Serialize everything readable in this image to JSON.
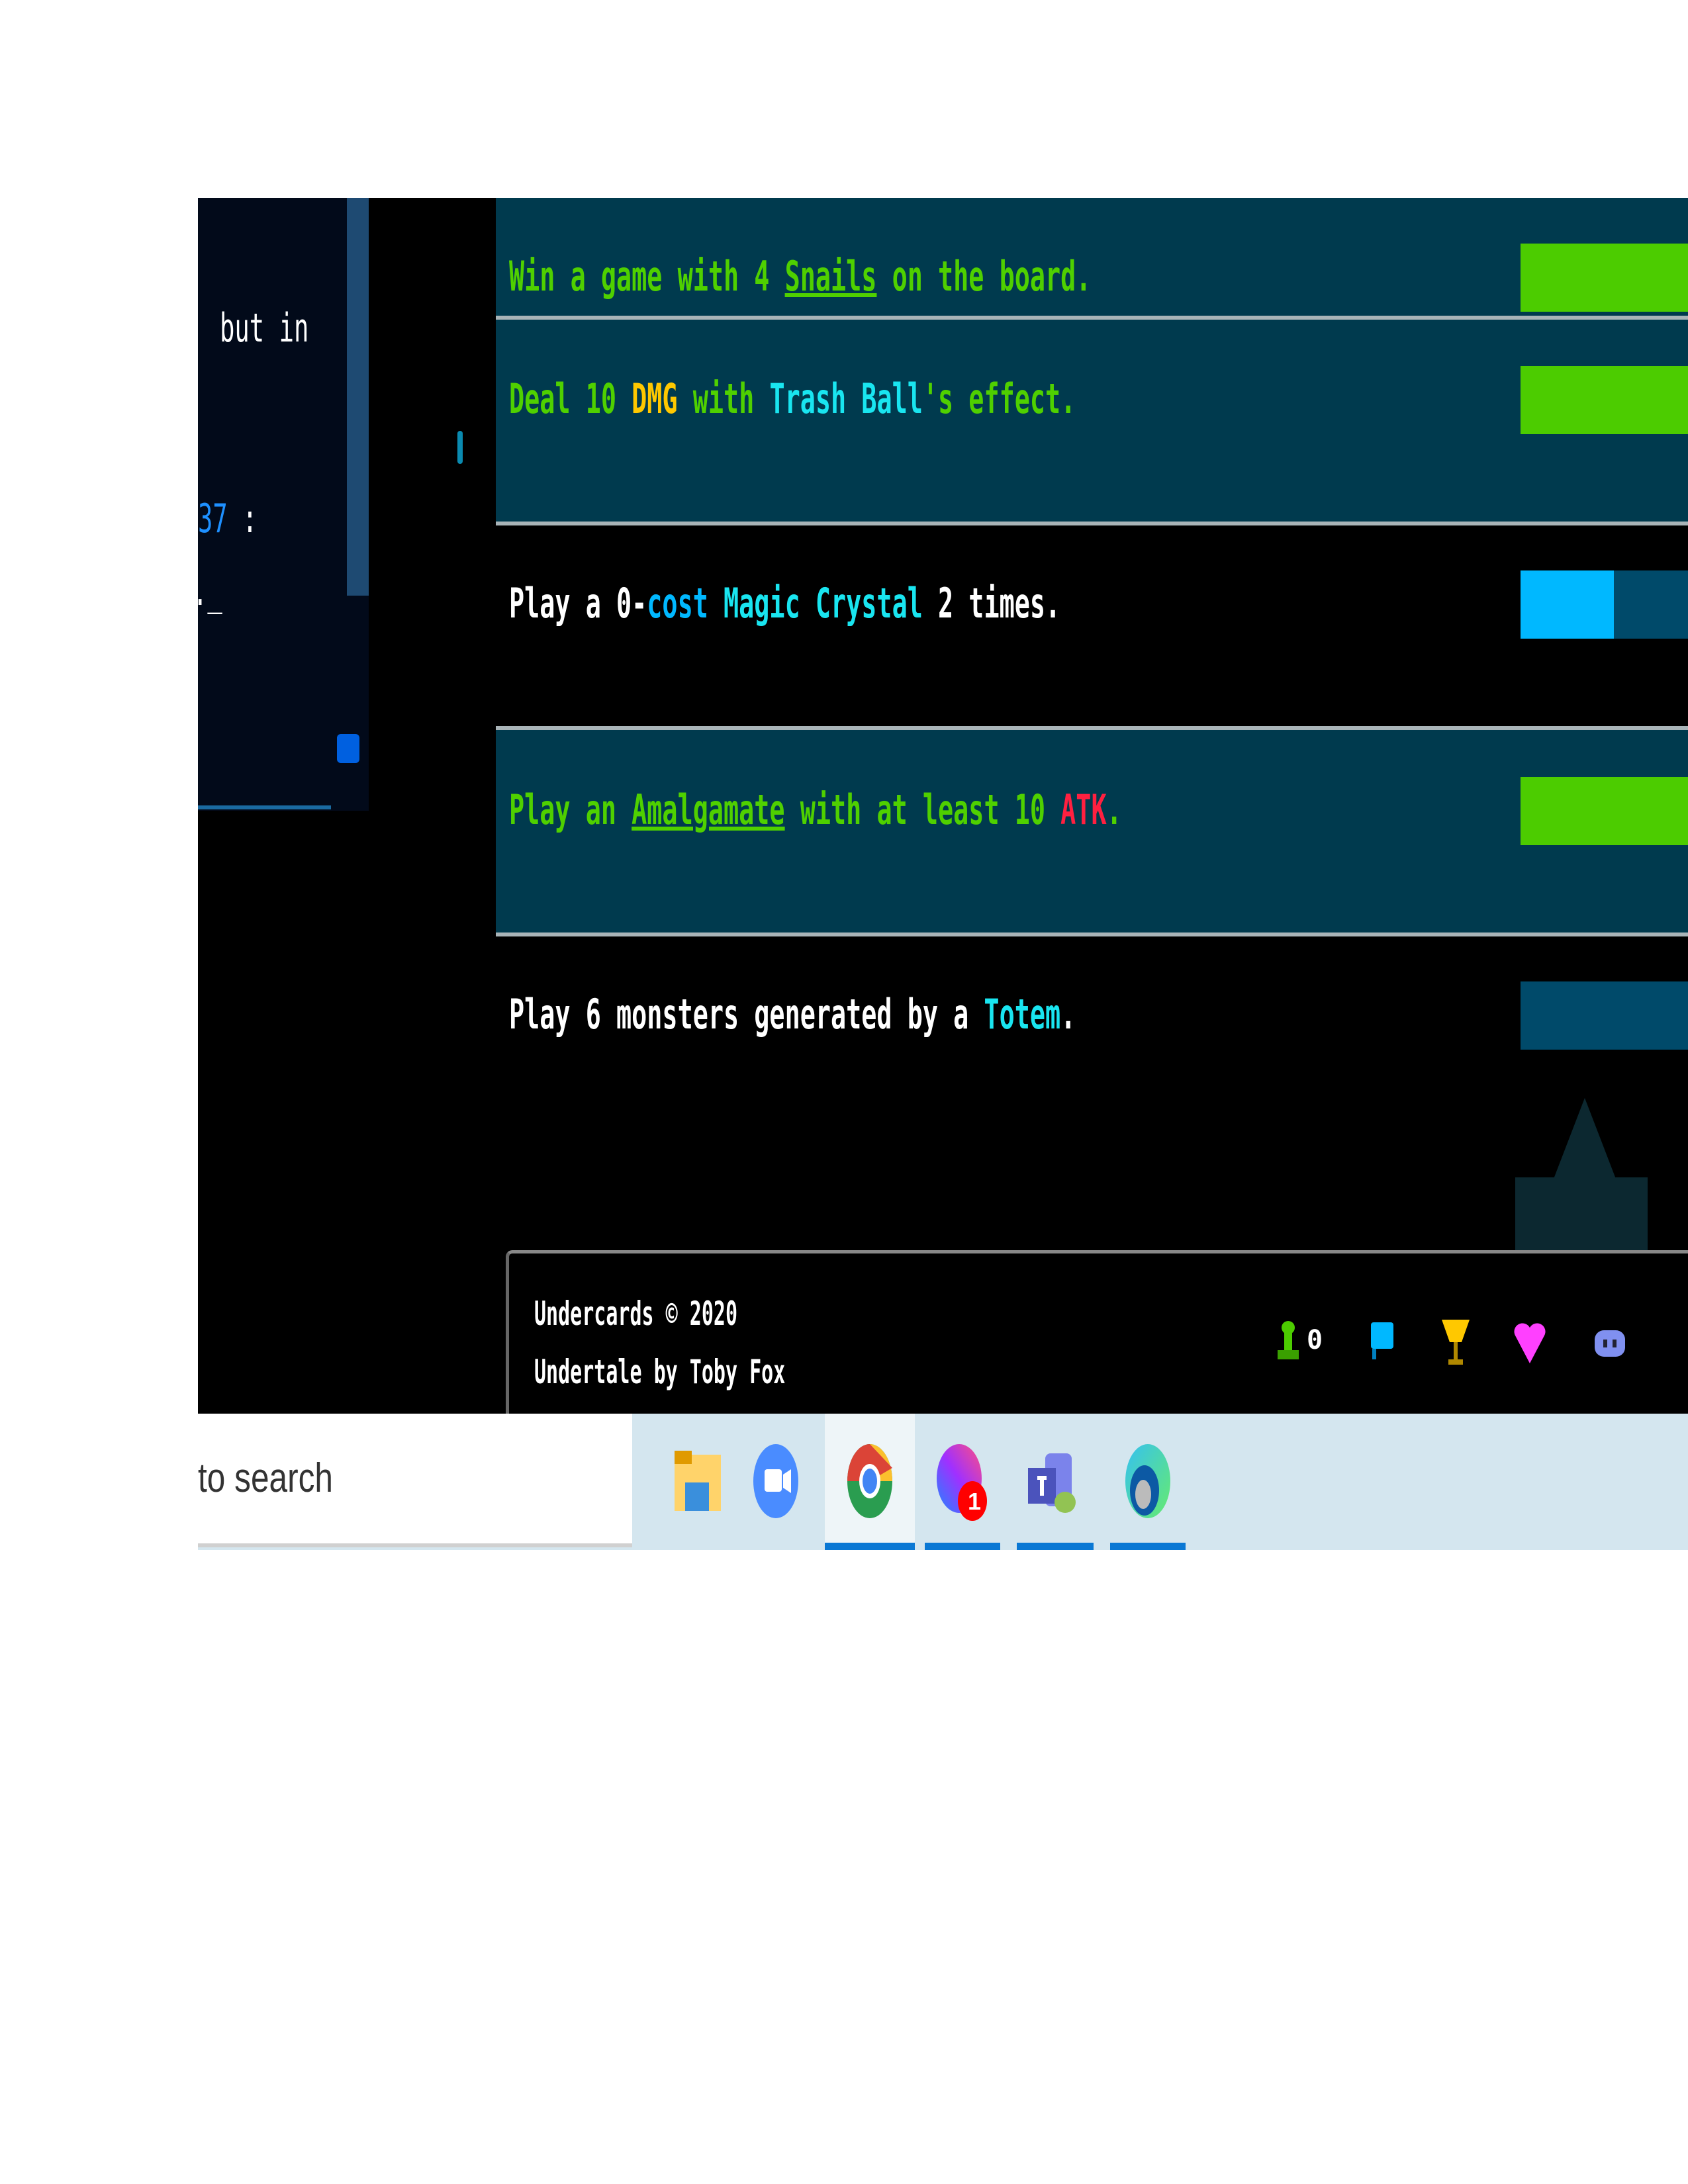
{
  "left_panel": {
    "text_line_1": "but in",
    "user_id_fragment": "37",
    "colon": ":",
    "trailing": "._"
  },
  "quests": [
    {
      "segments": [
        {
          "t": "Win a game with 4 ",
          "c": "#4fd000"
        },
        {
          "t": "Snails",
          "c": "#4fd000",
          "u": true
        },
        {
          "t": " on the board.",
          "c": "#4fd000"
        }
      ],
      "progress": "1 / 1",
      "value": 1,
      "max": 1,
      "completed": true
    },
    {
      "segments": [
        {
          "t": "Deal 10 ",
          "c": "#4fd000"
        },
        {
          "t": "DMG",
          "c": "#ffc800"
        },
        {
          "t": " with ",
          "c": "#4fd000"
        },
        {
          "t": "Trash Ball",
          "c": "#19e5f0"
        },
        {
          "t": "'s effect.",
          "c": "#4fd000"
        }
      ],
      "progress": "10 / 10",
      "value": 10,
      "max": 10,
      "completed": true
    },
    {
      "segments": [
        {
          "t": "Play a 0-",
          "c": "#ffffff"
        },
        {
          "t": "cost",
          "c": "#00b8ff"
        },
        {
          "t": " ",
          "c": "#ffffff"
        },
        {
          "t": "Magic Crystal",
          "c": "#19e5f0"
        },
        {
          "t": " 2 times.",
          "c": "#ffffff"
        }
      ],
      "progress": "1 / 2",
      "value": 1,
      "max": 2,
      "completed": false
    },
    {
      "segments": [
        {
          "t": "Play an ",
          "c": "#4fd000"
        },
        {
          "t": "Amalgamate",
          "c": "#4fd000",
          "u": true
        },
        {
          "t": " with at least 10 ",
          "c": "#4fd000"
        },
        {
          "t": "ATK",
          "c": "#ff2040"
        },
        {
          "t": ".",
          "c": "#4fd000"
        }
      ],
      "progress": "1 / 1",
      "value": 1,
      "max": 1,
      "completed": true
    },
    {
      "segments": [
        {
          "t": "Play 6 monsters generated by a ",
          "c": "#ffffff"
        },
        {
          "t": "Totem",
          "c": "#19e5f0"
        },
        {
          "t": ".",
          "c": "#ffffff"
        }
      ],
      "progress": "0 / 6",
      "value": 0,
      "max": 6,
      "completed": false
    }
  ],
  "colors": {
    "complete_fill": "#4ccc00",
    "partial_fill": "#00b8ff",
    "bar_bg": "#004a6a",
    "row_complete": "#003a4e"
  },
  "footer": {
    "copyright": "Undercards © 2020",
    "credit": "Undertale by Toby Fox",
    "online_count": "0",
    "icons": [
      "user-icon",
      "chat-icon",
      "trophy-icon",
      "heart-icon",
      "discord-icon"
    ]
  },
  "taskbar": {
    "search_placeholder": "to search",
    "apps": [
      "file-explorer",
      "zoom",
      "chrome",
      "messenger",
      "teams",
      "edge"
    ],
    "messenger_badge": "1"
  }
}
